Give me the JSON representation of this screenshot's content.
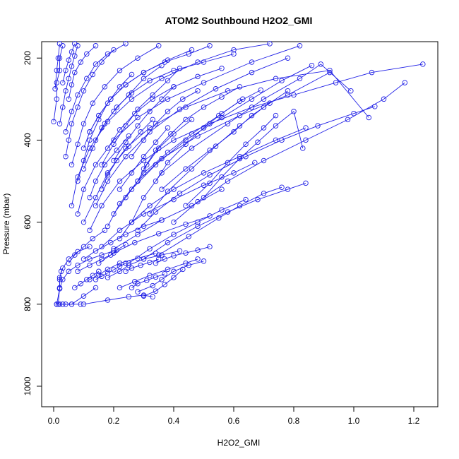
{
  "chart_data": {
    "type": "scatter",
    "title": "ATOM2 Southbound H2O2_GMI",
    "xlabel": "H2O2_GMI",
    "ylabel": "Pressure (mbar)",
    "xlim": [
      -0.04,
      1.28
    ],
    "ylim": [
      160,
      1050
    ],
    "y_reversed": true,
    "x_ticks": [
      0.0,
      0.2,
      0.4,
      0.6,
      0.8,
      1.0,
      1.2
    ],
    "x_tick_labels": [
      "0.0",
      "0.2",
      "0.4",
      "0.6",
      "0.8",
      "1.0",
      "1.2"
    ],
    "y_ticks": [
      200,
      400,
      600,
      800,
      1000
    ],
    "y_tick_labels": [
      "200",
      "400",
      "600",
      "800",
      "1000"
    ],
    "grid": false,
    "legend": "none",
    "series_color": "#1f1fe6",
    "marker": "open-circle",
    "line_style": "connected",
    "profiles": [
      {
        "x": [
          0.01,
          0.02,
          0.02,
          0.03,
          0.05,
          0.08,
          0.12
        ],
        "y": [
          800,
          762,
          735,
          712,
          690,
          672,
          660
        ]
      },
      {
        "x": [
          0.01,
          0.03,
          0.06,
          0.1,
          0.14
        ],
        "y": [
          800,
          800,
          800,
          780,
          760
        ]
      },
      {
        "x": [
          0.02,
          0.04,
          0.06,
          0.09
        ],
        "y": [
          800,
          800,
          800,
          800
        ]
      },
      {
        "x": [
          0.1,
          0.18,
          0.25,
          0.3,
          0.33
        ],
        "y": [
          800,
          790,
          782,
          778,
          782
        ]
      },
      {
        "x": [
          0.02,
          0.03,
          0.05,
          0.08,
          0.12,
          0.16,
          0.2
        ],
        "y": [
          762,
          740,
          720,
          705,
          690,
          680,
          670
        ]
      },
      {
        "x": [
          0.015,
          0.02,
          0.02,
          0.025
        ],
        "y": [
          800,
          760,
          740,
          720
        ]
      },
      {
        "x": [
          0.12,
          0.15,
          0.18,
          0.22,
          0.28,
          0.34
        ],
        "y": [
          740,
          728,
          715,
          700,
          688,
          676
        ]
      },
      {
        "x": [
          0.18,
          0.22,
          0.25,
          0.3,
          0.36,
          0.42
        ],
        "y": [
          735,
          720,
          705,
          690,
          680,
          670
        ]
      },
      {
        "x": [
          0.22,
          0.27,
          0.32,
          0.38,
          0.44,
          0.48
        ],
        "y": [
          760,
          745,
          730,
          715,
          700,
          690
        ]
      },
      {
        "x": [
          0.28,
          0.33,
          0.36,
          0.4,
          0.45,
          0.5
        ],
        "y": [
          770,
          755,
          740,
          720,
          705,
          695
        ]
      },
      {
        "x": [
          0.3,
          0.34,
          0.37,
          0.4,
          0.43
        ],
        "y": [
          780,
          768,
          752,
          735,
          715
        ]
      },
      {
        "x": [
          0.08,
          0.12,
          0.16,
          0.19,
          0.21,
          0.24
        ],
        "y": [
          720,
          705,
          690,
          680,
          668,
          655
        ]
      },
      {
        "x": [
          0.05,
          0.07,
          0.1,
          0.13,
          0.17
        ],
        "y": [
          700,
          680,
          660,
          640,
          620
        ]
      },
      {
        "x": [
          0.1,
          0.14,
          0.19,
          0.24,
          0.3,
          0.36
        ],
        "y": [
          690,
          670,
          650,
          630,
          610,
          595
        ]
      },
      {
        "x": [
          0.15,
          0.2,
          0.27,
          0.35,
          0.44,
          0.52
        ],
        "y": [
          700,
          675,
          650,
          628,
          605,
          585
        ]
      },
      {
        "x": [
          0.25,
          0.32,
          0.4,
          0.48,
          0.56,
          0.64
        ],
        "y": [
          700,
          665,
          630,
          600,
          570,
          545
        ]
      },
      {
        "x": [
          0.3,
          0.38,
          0.48,
          0.58,
          0.68,
          0.78,
          0.84
        ],
        "y": [
          690,
          650,
          610,
          575,
          545,
          520,
          505
        ]
      },
      {
        "x": [
          0.35,
          0.45,
          0.55,
          0.62,
          0.7,
          0.76
        ],
        "y": [
          680,
          635,
          590,
          560,
          530,
          515
        ]
      },
      {
        "x": [
          0.2,
          0.28,
          0.36,
          0.46,
          0.56
        ],
        "y": [
          665,
          630,
          595,
          560,
          520
        ]
      },
      {
        "x": [
          0.16,
          0.22,
          0.3,
          0.4,
          0.5,
          0.6,
          0.67
        ],
        "y": [
          660,
          620,
          580,
          545,
          510,
          480,
          455
        ]
      },
      {
        "x": [
          0.22,
          0.26,
          0.32,
          0.4,
          0.5,
          0.62,
          0.74,
          0.84
        ],
        "y": [
          640,
          600,
          560,
          520,
          480,
          440,
          400,
          370
        ]
      },
      {
        "x": [
          0.28,
          0.34,
          0.42,
          0.52,
          0.64,
          0.76,
          0.88,
          1.0,
          1.07
        ],
        "y": [
          620,
          575,
          530,
          485,
          440,
          400,
          365,
          335,
          318
        ]
      },
      {
        "x": [
          0.4,
          0.48,
          0.58,
          0.7,
          0.84,
          0.98,
          1.1,
          1.17
        ],
        "y": [
          600,
          550,
          500,
          450,
          400,
          350,
          300,
          260
        ]
      },
      {
        "x": [
          0.12,
          0.16,
          0.22,
          0.3,
          0.4,
          0.52,
          0.66,
          0.8,
          0.94,
          1.06,
          1.23
        ],
        "y": [
          620,
          560,
          500,
          450,
          400,
          360,
          320,
          290,
          260,
          235,
          215
        ]
      },
      {
        "x": [
          0.1,
          0.14,
          0.18,
          0.24,
          0.32,
          0.44,
          0.58,
          0.74,
          0.92,
          1.05
        ],
        "y": [
          600,
          540,
          480,
          420,
          370,
          320,
          280,
          250,
          230,
          345
        ]
      },
      {
        "x": [
          0.18,
          0.22,
          0.28,
          0.36,
          0.48,
          0.62,
          0.78,
          0.92
        ],
        "y": [
          610,
          555,
          500,
          445,
          390,
          340,
          290,
          235
        ]
      },
      {
        "x": [
          0.26,
          0.3,
          0.36,
          0.46,
          0.58,
          0.7,
          0.82,
          0.89,
          0.99
        ],
        "y": [
          600,
          540,
          480,
          420,
          360,
          300,
          250,
          215,
          280
        ]
      },
      {
        "x": [
          0.08,
          0.1,
          0.14,
          0.2,
          0.28,
          0.38,
          0.5,
          0.66,
          0.82
        ],
        "y": [
          580,
          520,
          460,
          400,
          345,
          300,
          260,
          210,
          170
        ]
      },
      {
        "x": [
          0.06,
          0.08,
          0.12,
          0.18,
          0.26,
          0.36,
          0.48,
          0.6,
          0.72
        ],
        "y": [
          560,
          490,
          420,
          355,
          300,
          250,
          210,
          180,
          165
        ]
      },
      {
        "x": [
          0.14,
          0.18,
          0.24,
          0.32,
          0.42,
          0.54,
          0.66,
          0.78
        ],
        "y": [
          560,
          500,
          440,
          380,
          325,
          275,
          235,
          200
        ]
      },
      {
        "x": [
          0.2,
          0.26,
          0.34,
          0.44,
          0.56,
          0.66,
          0.76,
          0.86
        ],
        "y": [
          580,
          520,
          460,
          400,
          345,
          300,
          255,
          218
        ]
      },
      {
        "x": [
          0.32,
          0.38,
          0.46,
          0.54,
          0.62,
          0.7,
          0.78
        ],
        "y": [
          580,
          525,
          470,
          415,
          365,
          320,
          280
        ]
      },
      {
        "x": [
          0.44,
          0.52,
          0.58,
          0.64,
          0.7,
          0.74
        ],
        "y": [
          560,
          505,
          455,
          410,
          370,
          340
        ]
      },
      {
        "x": [
          0.5,
          0.56,
          0.62,
          0.68,
          0.74,
          0.8,
          0.83
        ],
        "y": [
          540,
          490,
          445,
          405,
          365,
          330,
          420
        ]
      },
      {
        "x": [
          0.36,
          0.44,
          0.52,
          0.6,
          0.66,
          0.72
        ],
        "y": [
          520,
          470,
          425,
          380,
          340,
          310
        ]
      },
      {
        "x": [
          0.24,
          0.3,
          0.38,
          0.46,
          0.55,
          0.63
        ],
        "y": [
          540,
          480,
          430,
          385,
          340,
          300
        ]
      },
      {
        "x": [
          0.04,
          0.05,
          0.06,
          0.08,
          0.1,
          0.13,
          0.16,
          0.2
        ],
        "y": [
          440,
          400,
          360,
          320,
          280,
          240,
          210,
          180
        ]
      },
      {
        "x": [
          0.02,
          0.03,
          0.04,
          0.05,
          0.06,
          0.07,
          0.08
        ],
        "y": [
          360,
          320,
          280,
          250,
          220,
          195,
          170
        ]
      },
      {
        "x": [
          0.0,
          0.01,
          0.01,
          0.02,
          0.02,
          0.03
        ],
        "y": [
          355,
          300,
          260,
          230,
          200,
          170
        ]
      },
      {
        "x": [
          0.005,
          0.01,
          0.015,
          0.02
        ],
        "y": [
          275,
          230,
          200,
          165
        ]
      },
      {
        "x": [
          0.08,
          0.1,
          0.12,
          0.15,
          0.18,
          0.22,
          0.26
        ],
        "y": [
          500,
          450,
          400,
          350,
          310,
          270,
          240
        ]
      },
      {
        "x": [
          0.1,
          0.13,
          0.16,
          0.2,
          0.25,
          0.3,
          0.36
        ],
        "y": [
          470,
          420,
          370,
          330,
          290,
          250,
          218
        ]
      },
      {
        "x": [
          0.16,
          0.2,
          0.24,
          0.28,
          0.33,
          0.38,
          0.42
        ],
        "y": [
          460,
          410,
          365,
          325,
          290,
          255,
          225
        ]
      },
      {
        "x": [
          0.2,
          0.24,
          0.28,
          0.32,
          0.36,
          0.4
        ],
        "y": [
          450,
          405,
          365,
          330,
          300,
          270
        ]
      },
      {
        "x": [
          0.26,
          0.3,
          0.34,
          0.38,
          0.43,
          0.48
        ],
        "y": [
          440,
          400,
          360,
          330,
          300,
          280
        ]
      },
      {
        "x": [
          0.06,
          0.08,
          0.1,
          0.13,
          0.17,
          0.22,
          0.28,
          0.35
        ],
        "y": [
          460,
          410,
          360,
          310,
          270,
          230,
          200,
          170
        ]
      },
      {
        "x": [
          0.04,
          0.06,
          0.08,
          0.11,
          0.14,
          0.18,
          0.24
        ],
        "y": [
          380,
          330,
          290,
          250,
          215,
          190,
          165
        ]
      },
      {
        "x": [
          0.1,
          0.12,
          0.15,
          0.19,
          0.24,
          0.3,
          0.38,
          0.46
        ],
        "y": [
          420,
          380,
          340,
          300,
          265,
          235,
          205,
          180
        ]
      },
      {
        "x": [
          0.12,
          0.15,
          0.19,
          0.24,
          0.3,
          0.37,
          0.45,
          0.52
        ],
        "y": [
          380,
          340,
          300,
          265,
          235,
          210,
          190,
          170
        ]
      },
      {
        "x": [
          0.05,
          0.06,
          0.07,
          0.09,
          0.11,
          0.14
        ],
        "y": [
          300,
          265,
          235,
          210,
          190,
          170
        ]
      },
      {
        "x": [
          0.03,
          0.04,
          0.05,
          0.06,
          0.07
        ],
        "y": [
          260,
          230,
          205,
          185,
          165
        ]
      },
      {
        "x": [
          0.14,
          0.17,
          0.21,
          0.26,
          0.32,
          0.4,
          0.5,
          0.6
        ],
        "y": [
          400,
          360,
          320,
          285,
          255,
          230,
          210,
          190
        ]
      },
      {
        "x": [
          0.18,
          0.22,
          0.27,
          0.33,
          0.4,
          0.48,
          0.56
        ],
        "y": [
          420,
          375,
          335,
          300,
          270,
          245,
          225
        ]
      },
      {
        "x": [
          0.3,
          0.34,
          0.39,
          0.44,
          0.5,
          0.56,
          0.62
        ],
        "y": [
          470,
          425,
          385,
          350,
          320,
          295,
          270
        ]
      },
      {
        "x": [
          0.34,
          0.38,
          0.44,
          0.5,
          0.56,
          0.62,
          0.69
        ],
        "y": [
          500,
          455,
          410,
          370,
          335,
          305,
          278
        ]
      },
      {
        "x": [
          0.22,
          0.26,
          0.3,
          0.34,
          0.38
        ],
        "y": [
          520,
          480,
          440,
          405,
          370
        ]
      },
      {
        "x": [
          0.28,
          0.31,
          0.35,
          0.4,
          0.46
        ],
        "y": [
          500,
          460,
          420,
          385,
          350
        ]
      },
      {
        "x": [
          0.12,
          0.14,
          0.17,
          0.21,
          0.25
        ],
        "y": [
          540,
          500,
          460,
          425,
          390
        ]
      },
      {
        "x": [
          0.16,
          0.18,
          0.21,
          0.25,
          0.29,
          0.33
        ],
        "y": [
          520,
          485,
          450,
          415,
          380,
          350
        ]
      },
      {
        "x": [
          0.34,
          0.37,
          0.4,
          0.44,
          0.48,
          0.52
        ],
        "y": [
          700,
          690,
          682,
          675,
          668,
          660
        ]
      },
      {
        "x": [
          0.24,
          0.26,
          0.29,
          0.32,
          0.35
        ],
        "y": [
          720,
          712,
          705,
          698,
          690
        ]
      },
      {
        "x": [
          0.14,
          0.16,
          0.18,
          0.2,
          0.22,
          0.24
        ],
        "y": [
          740,
          732,
          724,
          716,
          708,
          700
        ]
      },
      {
        "x": [
          0.07,
          0.09,
          0.11,
          0.13,
          0.15
        ],
        "y": [
          760,
          750,
          740,
          730,
          720
        ]
      },
      {
        "x": [
          0.26,
          0.28,
          0.31,
          0.34,
          0.37
        ],
        "y": [
          760,
          750,
          742,
          734,
          726
        ]
      }
    ]
  }
}
